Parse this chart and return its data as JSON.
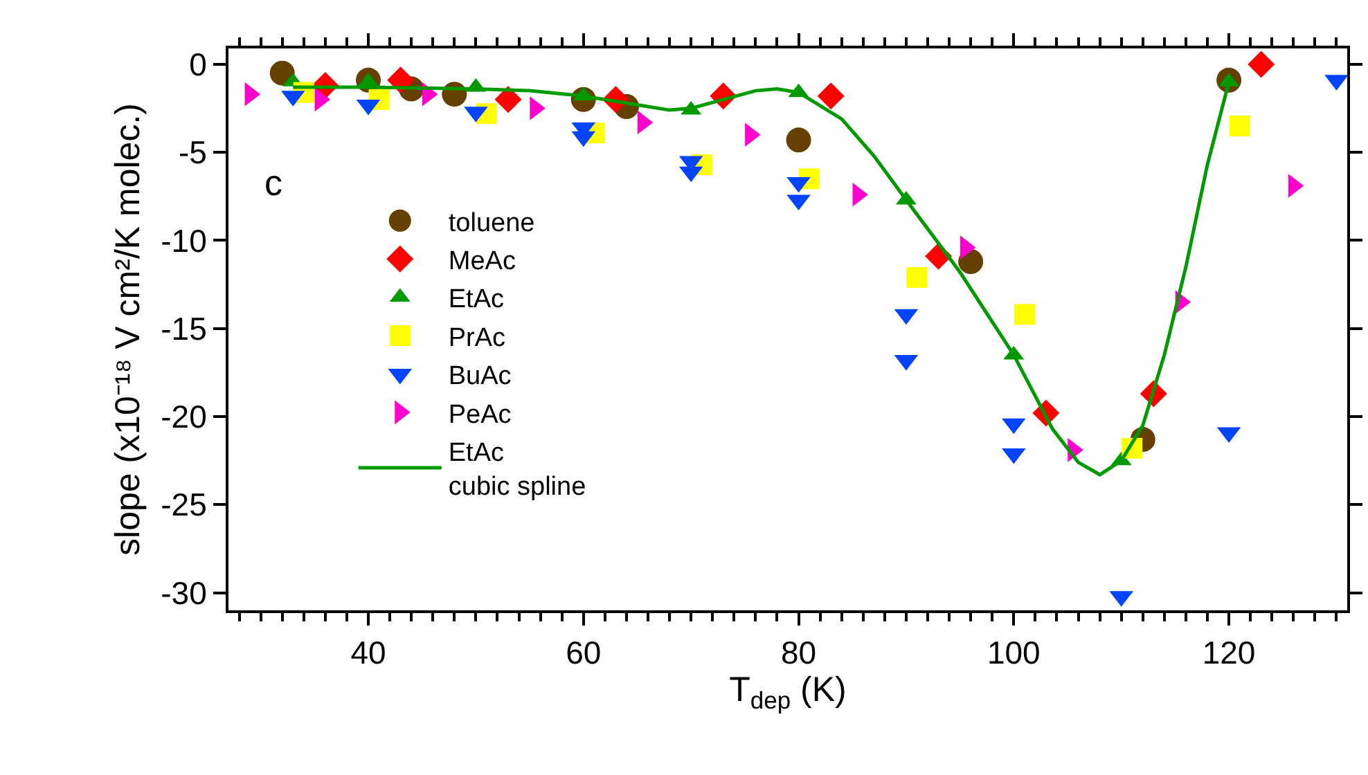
{
  "chart_data": {
    "type": "scatter",
    "xlabel": "T$_{dep}$ (K)",
    "ylabel": "slope (x10⁻¹⁸ V cm²/K molec.)",
    "annotations": [
      "c"
    ],
    "xlim": [
      27,
      131
    ],
    "xticks": [
      40,
      60,
      80,
      100,
      120
    ],
    "ylim": [
      -31,
      0.9
    ],
    "yticks": [
      0,
      -5,
      -10,
      -15,
      -20,
      -25,
      -30
    ],
    "grid": false,
    "legend": "left",
    "series": [
      {
        "name": "toluene",
        "color": "#664000",
        "marker": "circle",
        "x": [
          32,
          40,
          44,
          48,
          60,
          64,
          80,
          96,
          112,
          120
        ],
        "values": [
          -0.5,
          -0.9,
          -1.4,
          -1.7,
          -2.0,
          -2.4,
          -4.3,
          -11.2,
          -21.3,
          -0.9
        ]
      },
      {
        "name": "MeAc",
        "color": "#ff0000",
        "marker": "diamond",
        "x": [
          36,
          43,
          53,
          63,
          73,
          83,
          93,
          103,
          113,
          123
        ],
        "values": [
          -1.2,
          -0.9,
          -2.0,
          -2.0,
          -1.8,
          -1.8,
          -10.9,
          -19.8,
          -18.7,
          0
        ]
      },
      {
        "name": "EtAc",
        "color": "#009900",
        "marker": "triangle",
        "x": [
          33,
          40,
          50,
          60,
          70,
          80,
          90,
          100,
          110,
          120
        ],
        "values": [
          -1.0,
          -1.0,
          -1.3,
          -1.8,
          -2.6,
          -1.6,
          -7.7,
          -16.5,
          -22.5,
          -1.0
        ]
      },
      {
        "name": "PrAc",
        "color": "#ffff00",
        "marker": "square",
        "x": [
          34,
          41,
          51,
          61,
          71,
          81,
          91,
          101,
          111,
          121
        ],
        "values": [
          -1.6,
          -2.0,
          -2.8,
          -3.9,
          -5.7,
          -6.5,
          -12.1,
          -14.2,
          -21.8,
          -3.5
        ]
      },
      {
        "name": "BuAc",
        "color": "#0044ff",
        "marker": "triangle-down",
        "x": [
          33,
          40,
          50,
          60,
          60,
          70,
          70,
          80,
          80,
          90,
          90,
          100,
          100,
          110,
          120,
          130
        ],
        "values": [
          -1.8,
          -2.3,
          -2.7,
          -3.6,
          -4.1,
          -5.5,
          -6.1,
          -6.7,
          -7.7,
          -14.2,
          -16.8,
          -20.4,
          -22.1,
          -30.2,
          -20.9,
          -0.9
        ]
      },
      {
        "name": "PeAc",
        "color": "#ff00cc",
        "marker": "triangle-right",
        "x": [
          29,
          35.5,
          45.5,
          55.5,
          65.5,
          75.5,
          85.5,
          95.5,
          105.5,
          115.5,
          126
        ],
        "values": [
          -1.7,
          -2.0,
          -1.7,
          -2.5,
          -3.3,
          -4.0,
          -7.4,
          -10.4,
          -21.9,
          -13.5,
          -6.9
        ]
      },
      {
        "name": "EtAc\ncubic spline",
        "type": "line",
        "color": "#009900",
        "marker": "none",
        "line_style": "solid",
        "x": [
          33,
          40,
          50,
          55,
          60,
          65,
          68,
          70,
          73,
          76,
          78,
          80,
          84,
          87,
          90,
          95,
          100,
          103.6,
          106,
          108,
          110,
          112,
          114,
          116,
          118,
          120
        ],
        "values": [
          -1.3,
          -1.3,
          -1.4,
          -1.5,
          -1.8,
          -2.3,
          -2.6,
          -2.5,
          -2.0,
          -1.5,
          -1.4,
          -1.6,
          -3.1,
          -5.2,
          -7.7,
          -11.8,
          -16.5,
          -20.7,
          -22.6,
          -23.3,
          -22.5,
          -20.5,
          -16.5,
          -11.5,
          -5.7,
          -1.0
        ]
      }
    ]
  }
}
